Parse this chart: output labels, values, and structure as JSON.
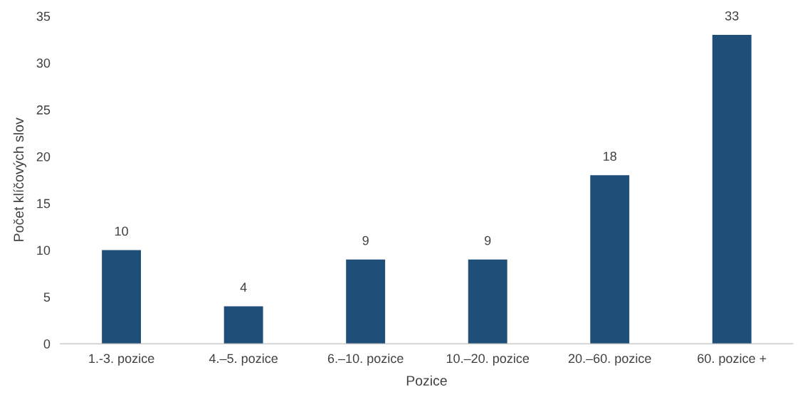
{
  "chart_data": {
    "type": "bar",
    "xlabel": "Pozice",
    "ylabel": "Počet klíčových slov",
    "categories": [
      "1.-3. pozice",
      "4.–5. pozice",
      "6.–10. pozice",
      "10.–20. pozice",
      "20.–60. pozice",
      "60. pozice +"
    ],
    "values": [
      10,
      4,
      9,
      9,
      18,
      33
    ],
    "color": "#1f4e79",
    "ylim": [
      0,
      35
    ],
    "yticks": [
      0,
      5,
      10,
      15,
      20,
      25,
      30,
      35
    ],
    "grid": false,
    "data_labels": true
  }
}
